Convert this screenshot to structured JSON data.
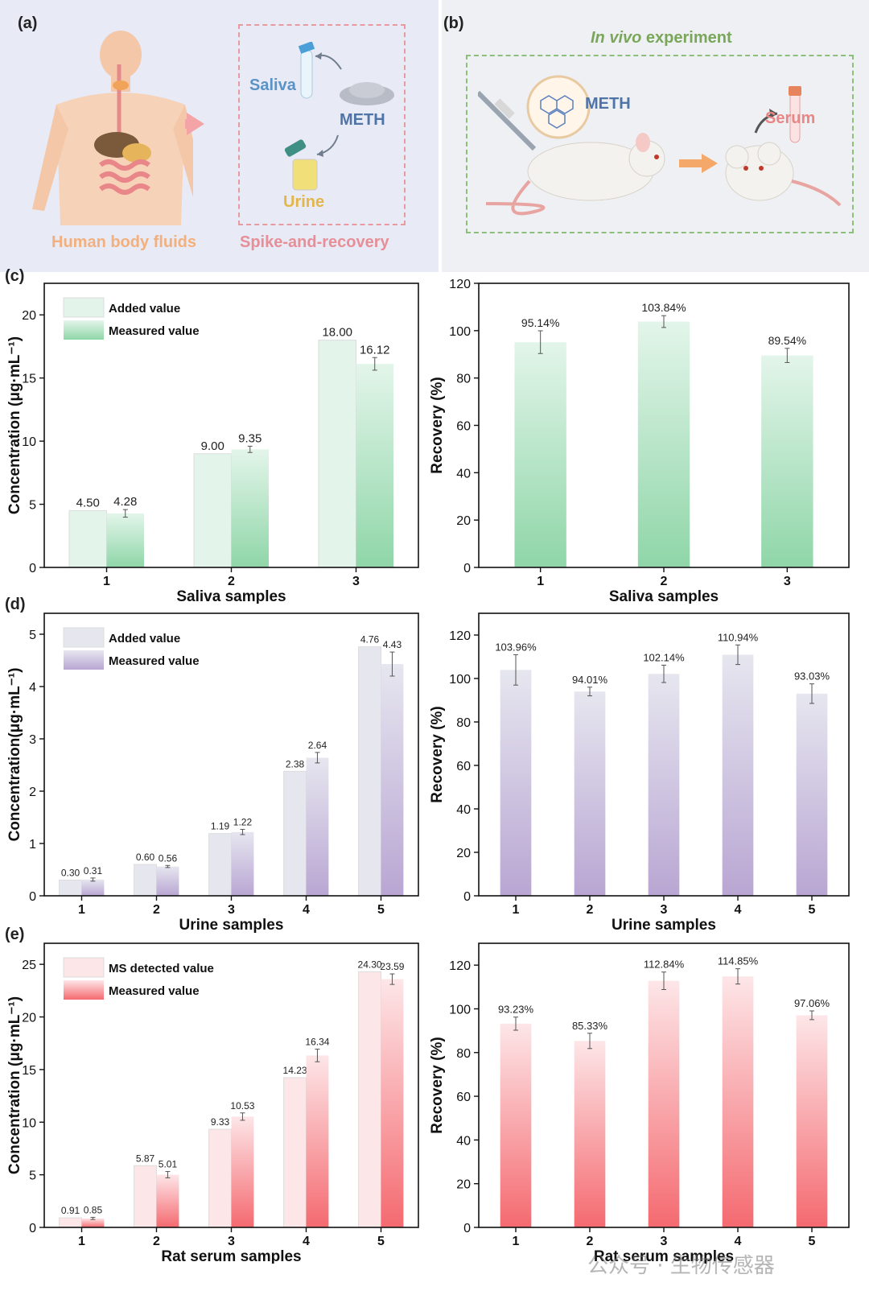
{
  "panel_labels": {
    "a": "(a)",
    "b": "(b)",
    "c": "(c)",
    "d": "(d)",
    "e": "(e)"
  },
  "panel_a": {
    "saliva": "Saliva",
    "meth": "METH",
    "urine": "Urine",
    "caption_left": "Human body fluids",
    "caption_right": "Spike-and-recovery"
  },
  "panel_b": {
    "title_italic": "In vivo",
    "title_rest": " experiment",
    "meth": "METH",
    "serum": "Serum"
  },
  "colors": {
    "green_light": "#e3f5ea",
    "green_dark": "#8fd6a8",
    "purple_light": "#e6e6ef",
    "purple_dark": "#b9a6d3",
    "red_light": "#fde6e8",
    "red_dark": "#f46a70"
  },
  "chart_data": [
    {
      "id": "c-left",
      "type": "bar",
      "palette": "green",
      "categories": [
        "1",
        "2",
        "3"
      ],
      "series": [
        {
          "name": "Added value",
          "values": [
            4.5,
            9.0,
            18.0
          ],
          "labels": [
            "4.50",
            "9.00",
            "18.00"
          ]
        },
        {
          "name": "Measured value",
          "values": [
            4.28,
            9.35,
            16.12
          ],
          "labels": [
            "4.28",
            "9.35",
            "16.12"
          ],
          "errors": [
            0.3,
            0.25,
            0.5
          ]
        }
      ],
      "xlabel": "Saliva samples",
      "ylabel": "Concentration (μg·mL⁻¹)",
      "ylim": [
        0,
        22.5
      ],
      "yticks": [
        0,
        5,
        10,
        15,
        20
      ]
    },
    {
      "id": "c-right",
      "type": "bar",
      "palette": "green",
      "categories": [
        "1",
        "2",
        "3"
      ],
      "series": [
        {
          "name": "Recovery",
          "values": [
            95.14,
            103.84,
            89.54
          ],
          "labels": [
            "95.14%",
            "103.84%",
            "89.54%"
          ],
          "errors": [
            4.8,
            2.5,
            3.0
          ]
        }
      ],
      "xlabel": "Saliva samples",
      "ylabel": "Recovery (%)",
      "ylim": [
        0,
        120
      ],
      "yticks": [
        0,
        20,
        40,
        60,
        80,
        100,
        120
      ]
    },
    {
      "id": "d-left",
      "type": "bar",
      "palette": "purple",
      "categories": [
        "1",
        "2",
        "3",
        "4",
        "5"
      ],
      "series": [
        {
          "name": "Added value",
          "values": [
            0.3,
            0.6,
            1.19,
            2.38,
            4.76
          ],
          "labels": [
            "0.30",
            "0.60",
            "1.19",
            "2.38",
            "4.76"
          ]
        },
        {
          "name": "Measured value",
          "values": [
            0.31,
            0.56,
            1.22,
            2.64,
            4.43
          ],
          "labels": [
            "0.31",
            "0.56",
            "1.22",
            "2.64",
            "4.43"
          ],
          "errors": [
            0.03,
            0.02,
            0.05,
            0.1,
            0.23
          ]
        }
      ],
      "xlabel": "Urine samples",
      "ylabel": "Concentration(μg·mL⁻¹)",
      "ylim": [
        0,
        5.4
      ],
      "yticks": [
        0,
        1,
        2,
        3,
        4,
        5
      ]
    },
    {
      "id": "d-right",
      "type": "bar",
      "palette": "purple",
      "categories": [
        "1",
        "2",
        "3",
        "4",
        "5"
      ],
      "series": [
        {
          "name": "Recovery",
          "values": [
            103.96,
            94.01,
            102.14,
            110.94,
            93.03
          ],
          "labels": [
            "103.96%",
            "94.01%",
            "102.14%",
            "110.94%",
            "93.03%"
          ],
          "errors": [
            7.0,
            2.0,
            4.0,
            4.5,
            4.5
          ]
        }
      ],
      "xlabel": "Urine samples",
      "ylabel": "Recovery (%)",
      "ylim": [
        0,
        130
      ],
      "yticks": [
        0,
        20,
        40,
        60,
        80,
        100,
        120
      ]
    },
    {
      "id": "e-left",
      "type": "bar",
      "palette": "red",
      "categories": [
        "1",
        "2",
        "3",
        "4",
        "5"
      ],
      "series": [
        {
          "name": "MS detected value",
          "values": [
            0.91,
            5.87,
            9.33,
            14.23,
            24.3
          ],
          "labels": [
            "0.91",
            "5.87",
            "9.33",
            "14.23",
            "24.30"
          ]
        },
        {
          "name": "Measured value",
          "values": [
            0.85,
            5.01,
            10.53,
            16.34,
            23.59
          ],
          "labels": [
            "0.85",
            "5.01",
            "10.53",
            "16.34",
            "23.59"
          ],
          "errors": [
            0.1,
            0.3,
            0.35,
            0.6,
            0.5
          ]
        }
      ],
      "xlabel": "Rat serum samples",
      "ylabel": "Concentration (μg·mL⁻¹)",
      "ylim": [
        0,
        27
      ],
      "yticks": [
        0,
        5,
        10,
        15,
        20,
        25
      ]
    },
    {
      "id": "e-right",
      "type": "bar",
      "palette": "red",
      "categories": [
        "1",
        "2",
        "3",
        "4",
        "5"
      ],
      "series": [
        {
          "name": "Recovery",
          "values": [
            93.23,
            85.33,
            112.84,
            114.85,
            97.06
          ],
          "labels": [
            "93.23%",
            "85.33%",
            "112.84%",
            "114.85%",
            "97.06%"
          ],
          "errors": [
            3.0,
            3.5,
            4.0,
            3.5,
            2.0
          ]
        }
      ],
      "xlabel": "Rat serum samples",
      "ylabel": "Recovery (%)",
      "ylim": [
        0,
        130
      ],
      "yticks": [
        0,
        20,
        40,
        60,
        80,
        100,
        120
      ]
    }
  ],
  "watermark": "公众号 · 生物传感器"
}
